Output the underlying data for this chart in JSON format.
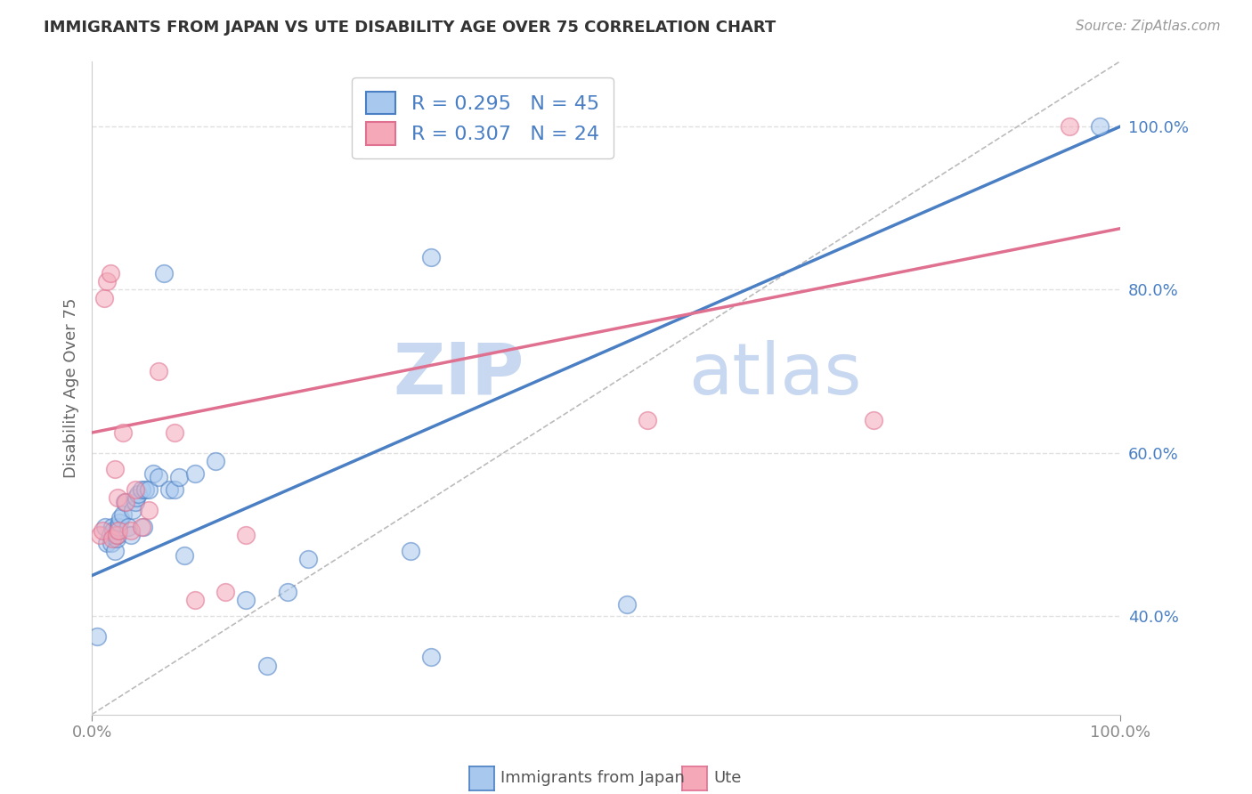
{
  "title": "IMMIGRANTS FROM JAPAN VS UTE DISABILITY AGE OVER 75 CORRELATION CHART",
  "source_text": "Source: ZipAtlas.com",
  "ylabel": "Disability Age Over 75",
  "xlim": [
    0.0,
    1.0
  ],
  "ylim": [
    0.28,
    1.08
  ],
  "ytick_labels": [
    "40.0%",
    "60.0%",
    "80.0%",
    "100.0%"
  ],
  "ytick_values": [
    0.4,
    0.6,
    0.8,
    1.0
  ],
  "legend_entry1": "R = 0.295   N = 45",
  "legend_entry2": "R = 0.307   N = 24",
  "legend_label1": "Immigrants from Japan",
  "legend_label2": "Ute",
  "color_blue": "#a8c8ee",
  "color_pink": "#f4a8b8",
  "color_blue_line": "#4a7fc4",
  "color_pink_line": "#e07090",
  "color_dashed": "#bbbbbb",
  "japan_x": [
    0.005,
    0.013,
    0.015,
    0.018,
    0.019,
    0.02,
    0.021,
    0.022,
    0.023,
    0.024,
    0.025,
    0.025,
    0.026,
    0.027,
    0.028,
    0.03,
    0.032,
    0.035,
    0.038,
    0.04,
    0.042,
    0.043,
    0.045,
    0.048,
    0.05,
    0.052,
    0.055,
    0.06,
    0.065,
    0.07,
    0.075,
    0.08,
    0.085,
    0.09,
    0.1,
    0.12,
    0.15,
    0.17,
    0.19,
    0.21,
    0.31,
    0.33,
    0.52,
    0.33,
    0.98
  ],
  "japan_y": [
    0.375,
    0.51,
    0.49,
    0.5,
    0.49,
    0.51,
    0.505,
    0.48,
    0.5,
    0.495,
    0.5,
    0.505,
    0.51,
    0.515,
    0.52,
    0.525,
    0.54,
    0.51,
    0.5,
    0.53,
    0.54,
    0.545,
    0.55,
    0.555,
    0.51,
    0.555,
    0.555,
    0.575,
    0.57,
    0.82,
    0.555,
    0.555,
    0.57,
    0.475,
    0.575,
    0.59,
    0.42,
    0.34,
    0.43,
    0.47,
    0.48,
    0.35,
    0.415,
    0.84,
    1.0
  ],
  "ute_x": [
    0.008,
    0.01,
    0.012,
    0.015,
    0.018,
    0.02,
    0.022,
    0.024,
    0.025,
    0.026,
    0.03,
    0.033,
    0.038,
    0.042,
    0.048,
    0.055,
    0.065,
    0.08,
    0.1,
    0.13,
    0.15,
    0.54,
    0.76,
    0.95
  ],
  "ute_y": [
    0.5,
    0.505,
    0.79,
    0.81,
    0.82,
    0.495,
    0.58,
    0.5,
    0.545,
    0.505,
    0.625,
    0.54,
    0.505,
    0.555,
    0.51,
    0.53,
    0.7,
    0.625,
    0.42,
    0.43,
    0.5,
    0.64,
    0.64,
    1.0
  ],
  "japan_line_x": [
    0.0,
    1.0
  ],
  "japan_line_y": [
    0.45,
    1.0
  ],
  "ute_line_x": [
    0.0,
    1.0
  ],
  "ute_line_y": [
    0.625,
    0.875
  ],
  "diag_line_x": [
    0.0,
    1.0
  ],
  "diag_line_y": [
    0.28,
    1.08
  ],
  "grid_color": "#e0e0e0",
  "background_color": "#ffffff",
  "watermark_zip": "ZIP",
  "watermark_atlas": "atlas",
  "watermark_color_zip": "#c8d8f0",
  "watermark_color_atlas": "#c8d8f0"
}
